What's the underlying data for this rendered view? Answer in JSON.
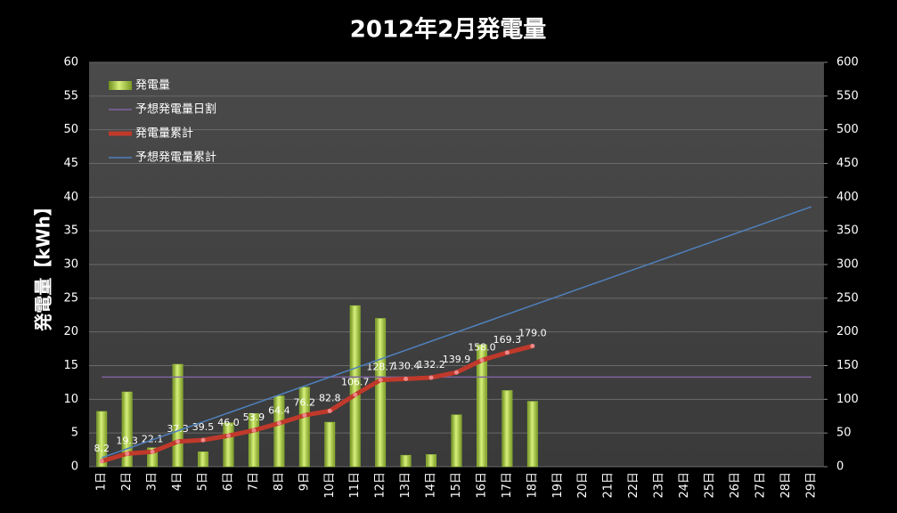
{
  "chart_data": {
    "type": "bar",
    "title": "2012年2月発電量",
    "y_label": "発電量【kWh】",
    "categories": [
      "1日",
      "2日",
      "3日",
      "4日",
      "5日",
      "6日",
      "7日",
      "8日",
      "9日",
      "10日",
      "11日",
      "12日",
      "13日",
      "14日",
      "15日",
      "16日",
      "17日",
      "18日",
      "19日",
      "20日",
      "21日",
      "22日",
      "23日",
      "24日",
      "25日",
      "26日",
      "27日",
      "28日",
      "29日"
    ],
    "ylim": [
      0,
      60
    ],
    "yticks": [
      0,
      5,
      10,
      15,
      20,
      25,
      30,
      35,
      40,
      45,
      50,
      55,
      60
    ],
    "y2lim": [
      0,
      600
    ],
    "y2ticks": [
      0,
      50,
      100,
      150,
      200,
      250,
      300,
      350,
      400,
      450,
      500,
      550,
      600
    ],
    "grid": true,
    "legend": "top-left",
    "series": [
      {
        "name": "発電量",
        "type": "bar",
        "color": "#9bc43a",
        "values": [
          8.2,
          11.1,
          2.8,
          15.2,
          2.2,
          6.5,
          7.9,
          10.5,
          11.8,
          6.6,
          23.9,
          22.0,
          1.7,
          1.8,
          7.7,
          18.1,
          11.3,
          9.7,
          null,
          null,
          null,
          null,
          null,
          null,
          null,
          null,
          null,
          null,
          null
        ]
      },
      {
        "name": "予想発電量日割",
        "type": "line",
        "color": "#8064a2",
        "values": [
          13.3,
          13.3,
          13.3,
          13.3,
          13.3,
          13.3,
          13.3,
          13.3,
          13.3,
          13.3,
          13.3,
          13.3,
          13.3,
          13.3,
          13.3,
          13.3,
          13.3,
          13.3,
          13.3,
          13.3,
          13.3,
          13.3,
          13.3,
          13.3,
          13.3,
          13.3,
          13.3,
          13.3,
          13.3
        ]
      },
      {
        "name": "発電量累計",
        "type": "line",
        "axis": "y2",
        "color": "#c0392b",
        "markers": true,
        "values": [
          8.2,
          19.3,
          22.1,
          37.3,
          39.5,
          46.0,
          53.9,
          64.4,
          76.2,
          82.8,
          106.7,
          128.7,
          130.4,
          132.2,
          139.9,
          158.0,
          169.3,
          179.0,
          null,
          null,
          null,
          null,
          null,
          null,
          null,
          null,
          null,
          null,
          null
        ],
        "value_labels": [
          "8.2",
          "19.3",
          "22.1",
          "37.3",
          "39.5",
          "46.0",
          "53.9",
          "64.4",
          "76.2",
          "82.8",
          "106.7",
          "128.7",
          "130.4",
          "132.2",
          "139.9",
          "158.0",
          "169.3",
          "179.0",
          null,
          null,
          null,
          null,
          null,
          null,
          null,
          null,
          null,
          null,
          null
        ]
      },
      {
        "name": "予想発電量累計",
        "type": "line",
        "axis": "y2",
        "color": "#4f81bd",
        "values": [
          13.3,
          26.6,
          39.9,
          53.2,
          66.5,
          79.8,
          93.1,
          106.4,
          119.7,
          133.0,
          146.3,
          159.6,
          172.9,
          186.2,
          199.5,
          212.8,
          226.1,
          239.4,
          252.7,
          266.0,
          279.3,
          292.6,
          305.9,
          319.2,
          332.5,
          345.8,
          359.1,
          372.4,
          385.7
        ]
      }
    ]
  }
}
